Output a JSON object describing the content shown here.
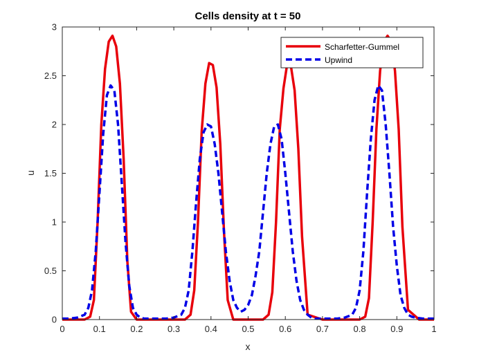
{
  "chart_data": {
    "type": "line",
    "title": "Cells density at t = 50",
    "xlabel": "x",
    "ylabel": "u",
    "xlim": [
      0,
      1
    ],
    "ylim": [
      0,
      3
    ],
    "xticks": [
      0,
      0.1,
      0.2,
      0.3,
      0.4,
      0.5,
      0.6,
      0.7,
      0.8,
      0.9,
      1
    ],
    "xtick_labels": [
      "0",
      "0.1",
      "0.2",
      "0.3",
      "0.4",
      "0.5",
      "0.6",
      "0.7",
      "0.8",
      "0.9",
      "1"
    ],
    "yticks": [
      0,
      0.5,
      1,
      1.5,
      2,
      2.5,
      3
    ],
    "ytick_labels": [
      "0",
      "0.5",
      "1",
      "1.5",
      "2",
      "2.5",
      "3"
    ],
    "grid": false,
    "legend_position": "top-right",
    "series": [
      {
        "name": "Scharfetter-Gummel",
        "color": "#e8000b",
        "style": "solid",
        "x": [
          0,
          0.02,
          0.04,
          0.06,
          0.075,
          0.085,
          0.095,
          0.105,
          0.115,
          0.125,
          0.135,
          0.145,
          0.155,
          0.165,
          0.175,
          0.185,
          0.2,
          0.25,
          0.3,
          0.33,
          0.345,
          0.355,
          0.365,
          0.375,
          0.385,
          0.395,
          0.405,
          0.415,
          0.425,
          0.435,
          0.445,
          0.46,
          0.5,
          0.54,
          0.555,
          0.565,
          0.575,
          0.585,
          0.595,
          0.605,
          0.615,
          0.625,
          0.635,
          0.645,
          0.66,
          0.7,
          0.75,
          0.8,
          0.815,
          0.825,
          0.835,
          0.845,
          0.855,
          0.865,
          0.875,
          0.885,
          0.895,
          0.905,
          0.915,
          0.93,
          0.96,
          1
        ],
        "y": [
          0,
          0,
          0,
          0,
          0.03,
          0.2,
          1.0,
          2.0,
          2.57,
          2.85,
          2.91,
          2.8,
          2.42,
          1.65,
          0.6,
          0.08,
          0,
          0,
          0,
          0,
          0.05,
          0.3,
          1.0,
          1.93,
          2.42,
          2.63,
          2.61,
          2.38,
          1.8,
          0.9,
          0.2,
          0,
          0,
          0,
          0.05,
          0.28,
          1.0,
          1.95,
          2.37,
          2.62,
          2.6,
          2.35,
          1.75,
          0.85,
          0.05,
          0,
          0,
          0,
          0.03,
          0.22,
          1.0,
          1.95,
          2.55,
          2.85,
          2.91,
          2.85,
          2.55,
          1.95,
          0.95,
          0.1,
          0,
          0
        ]
      },
      {
        "name": "Upwind",
        "color": "#0000e6",
        "style": "dashed",
        "x": [
          0,
          0.02,
          0.04,
          0.06,
          0.07,
          0.08,
          0.09,
          0.1,
          0.11,
          0.12,
          0.13,
          0.14,
          0.15,
          0.16,
          0.17,
          0.18,
          0.19,
          0.2,
          0.21,
          0.22,
          0.24,
          0.26,
          0.28,
          0.3,
          0.32,
          0.33,
          0.34,
          0.35,
          0.36,
          0.37,
          0.38,
          0.39,
          0.4,
          0.41,
          0.42,
          0.43,
          0.44,
          0.45,
          0.46,
          0.47,
          0.48,
          0.49,
          0.5,
          0.51,
          0.52,
          0.53,
          0.54,
          0.55,
          0.56,
          0.57,
          0.58,
          0.59,
          0.6,
          0.61,
          0.62,
          0.63,
          0.64,
          0.65,
          0.66,
          0.67,
          0.68,
          0.7,
          0.72,
          0.74,
          0.76,
          0.78,
          0.79,
          0.8,
          0.81,
          0.82,
          0.83,
          0.84,
          0.85,
          0.86,
          0.87,
          0.88,
          0.89,
          0.9,
          0.91,
          0.92,
          0.93,
          0.94,
          0.95,
          0.97,
          1
        ],
        "y": [
          0.01,
          0.01,
          0.02,
          0.05,
          0.12,
          0.3,
          0.7,
          1.3,
          1.9,
          2.3,
          2.4,
          2.35,
          2.0,
          1.4,
          0.8,
          0.35,
          0.12,
          0.05,
          0.02,
          0.01,
          0.01,
          0.01,
          0.01,
          0.02,
          0.05,
          0.12,
          0.3,
          0.7,
          1.2,
          1.65,
          1.92,
          2.0,
          1.98,
          1.8,
          1.5,
          1.1,
          0.7,
          0.4,
          0.2,
          0.12,
          0.08,
          0.1,
          0.15,
          0.25,
          0.45,
          0.7,
          1.1,
          1.5,
          1.8,
          1.98,
          2.0,
          1.85,
          1.5,
          1.1,
          0.7,
          0.4,
          0.2,
          0.1,
          0.05,
          0.02,
          0.01,
          0.01,
          0.01,
          0.01,
          0.02,
          0.05,
          0.12,
          0.3,
          0.7,
          1.3,
          1.85,
          2.25,
          2.4,
          2.35,
          2.0,
          1.5,
          0.95,
          0.55,
          0.25,
          0.12,
          0.05,
          0.03,
          0.02,
          0.01,
          0.01
        ]
      }
    ]
  }
}
